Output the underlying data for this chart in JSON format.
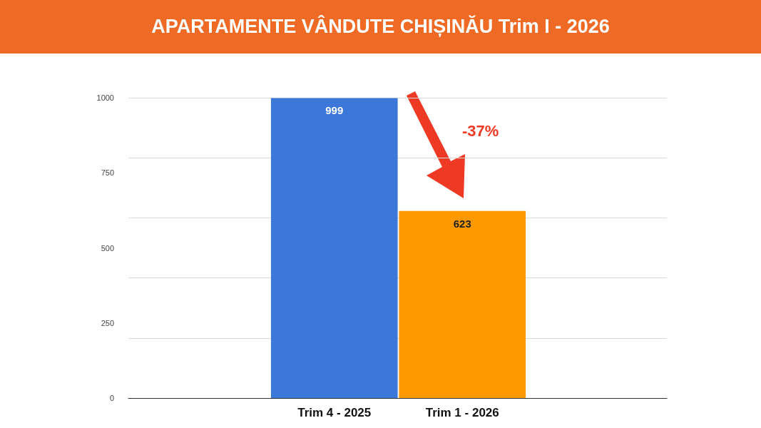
{
  "chart_data": {
    "type": "bar",
    "title": "APARTAMENTE VÂNDUTE CHIȘINĂU Trim I - 2026",
    "categories": [
      "Trim 4 - 2025",
      "Trim 1 - 2026"
    ],
    "values": [
      999,
      623
    ],
    "colors": [
      "#3c78d8",
      "#ff9900"
    ],
    "ylim": [
      0,
      1000
    ],
    "yticks": [
      0,
      250,
      500,
      750,
      1000
    ],
    "grid": "y",
    "data_labels": true,
    "annotations": [
      "-37%"
    ]
  }
}
